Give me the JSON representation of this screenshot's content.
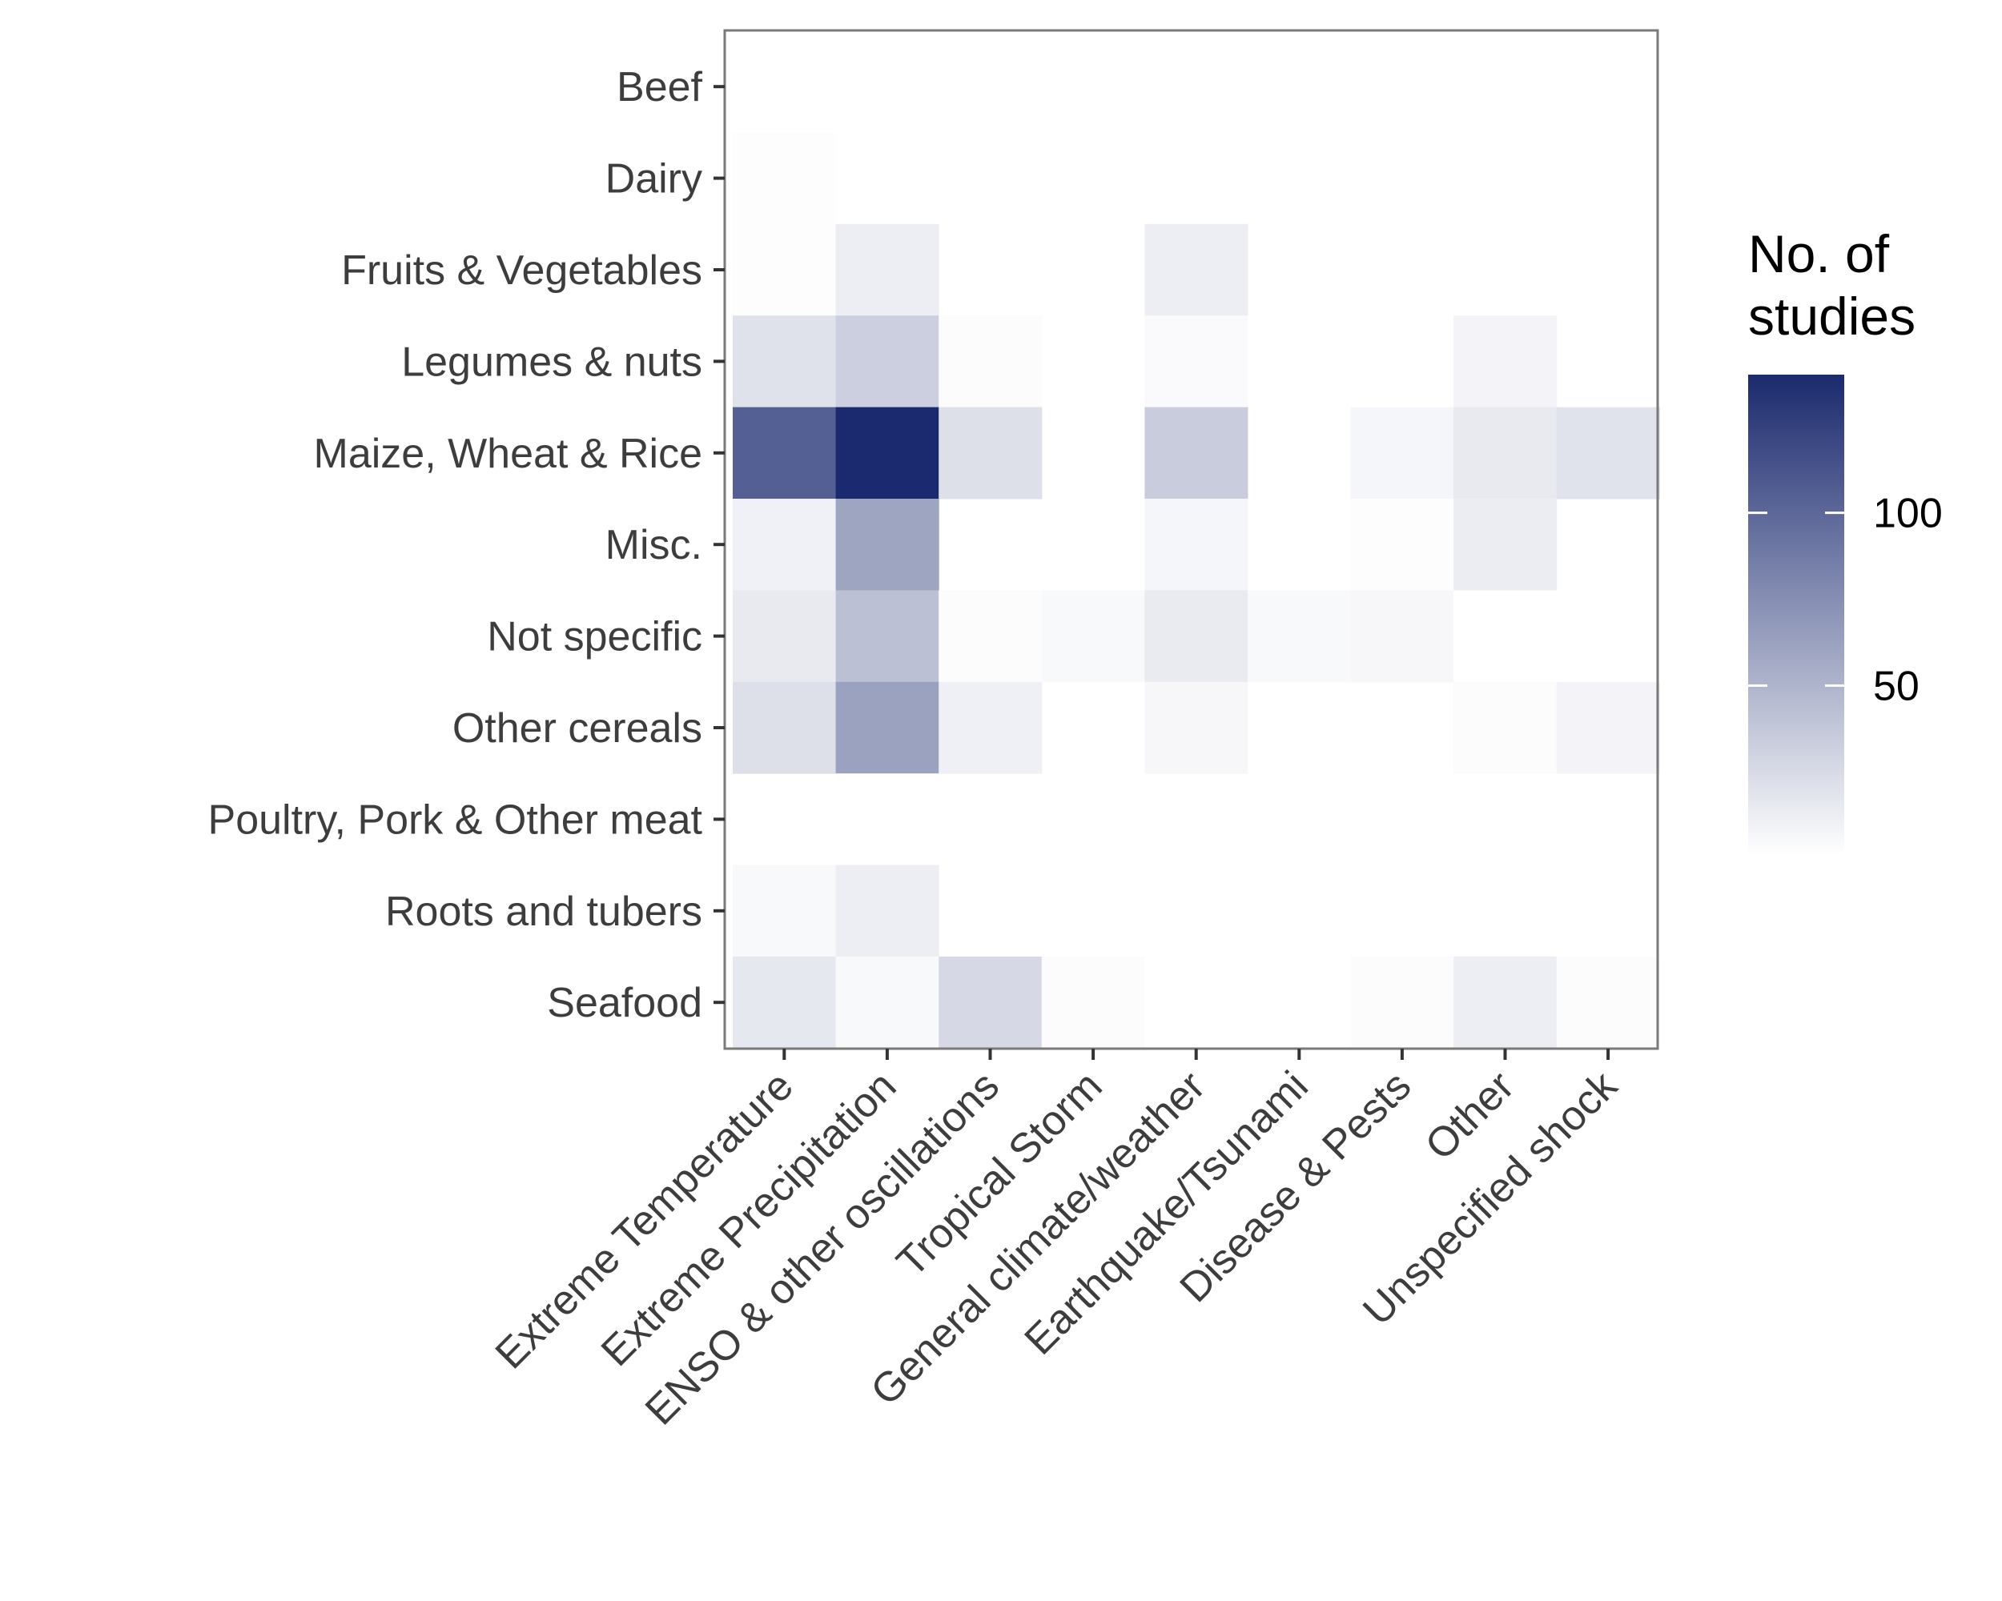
{
  "chart_data": {
    "type": "heatmap",
    "title": "",
    "xlabel": "",
    "ylabel": "",
    "x_categories": [
      "Extreme Temperature",
      "Extreme Precipitation",
      "ENSO & other oscillations",
      "Tropical Storm",
      "General climate/weather",
      "Earthquake/Tsunami",
      "Disease & Pests",
      "Other",
      "Unspecified shock"
    ],
    "y_categories": [
      "Beef",
      "Dairy",
      "Fruits & Vegetables",
      "Legumes & nuts",
      "Maize, Wheat & Rice",
      "Misc.",
      "Not specific",
      "Other cereals",
      "Poultry, Pork & Other meat",
      "Roots and tubers",
      "Seafood"
    ],
    "values": [
      [
        null,
        null,
        null,
        null,
        null,
        null,
        null,
        null,
        null
      ],
      [
        2,
        1,
        null,
        null,
        null,
        null,
        null,
        null,
        null
      ],
      [
        2,
        12,
        null,
        null,
        12,
        null,
        null,
        null,
        null
      ],
      [
        20,
        32,
        3,
        null,
        4,
        null,
        null,
        8,
        null
      ],
      [
        105,
        140,
        22,
        null,
        34,
        null,
        7,
        15,
        19
      ],
      [
        10,
        60,
        null,
        null,
        7,
        null,
        2,
        13,
        null
      ],
      [
        15,
        42,
        3,
        5,
        14,
        5,
        6,
        1,
        null
      ],
      [
        22,
        62,
        11,
        null,
        6,
        null,
        null,
        3,
        8
      ],
      [
        null,
        1,
        null,
        null,
        null,
        null,
        null,
        null,
        null
      ],
      [
        5,
        12,
        null,
        null,
        null,
        null,
        null,
        null,
        null
      ],
      [
        16,
        5,
        26,
        3,
        null,
        null,
        3,
        12,
        3
      ]
    ],
    "legend": {
      "title": "No. of\nstudies",
      "title_lines": [
        "No. of",
        "studies"
      ],
      "ticks": [
        100,
        50
      ],
      "tick_labels": [
        "100",
        "50"
      ],
      "range": [
        1,
        140
      ],
      "placement": "right"
    },
    "colors": {
      "low": "#ffffff",
      "high": "#1b2a6e",
      "panel_border": "#7a7a7a",
      "tick": "#333333",
      "text": "#3d3d3d"
    },
    "grid": false
  }
}
